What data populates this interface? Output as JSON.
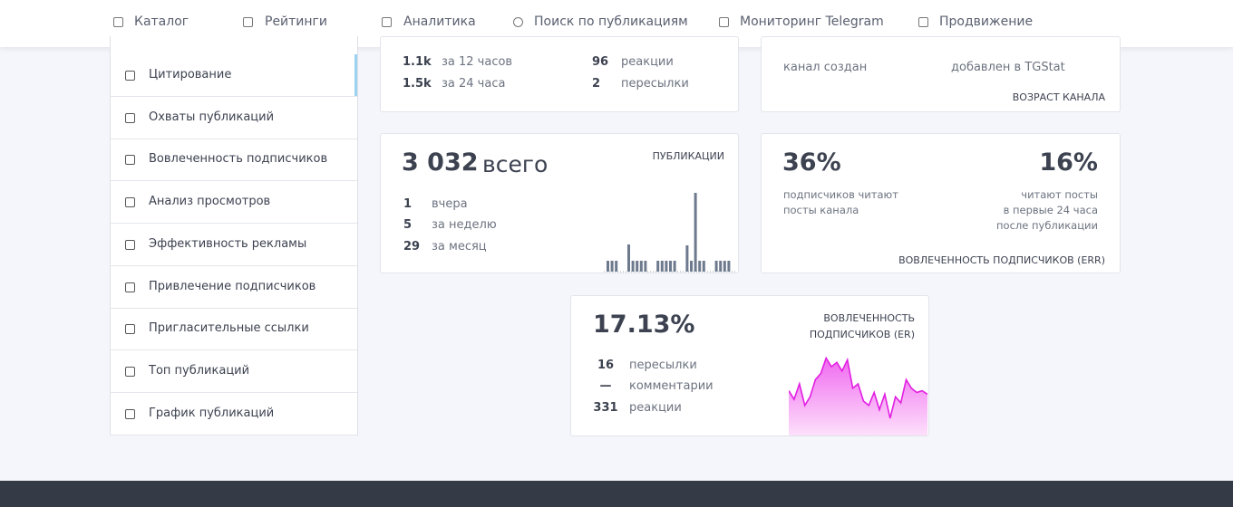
{
  "nav": [
    "Каталог",
    "Рейтинги",
    "Аналитика",
    "Поиск по публикациям",
    "Мониторинг Telegram",
    "Продвижение"
  ],
  "sidebar": [
    "Цитирование",
    "Охваты публикаций",
    "Вовлеченность подписчиков",
    "Анализ просмотров",
    "Эффективность рекламы",
    "Привлечение подписчиков",
    "Пригласительные ссылки",
    "Топ публикаций",
    "График публикаций"
  ],
  "views_card": {
    "rows": [
      {
        "value": "1.1k",
        "label": "за 12 часов"
      },
      {
        "value": "1.5k",
        "label": "за 24 часа"
      }
    ],
    "stats": [
      {
        "value": "96",
        "label": "реакции"
      },
      {
        "value": "2",
        "label": "пересылки"
      }
    ]
  },
  "age_card": {
    "created_label": "канал создан",
    "added_label": "добавлен в TGStat",
    "title": "ВОЗРАСТ КАНАЛА"
  },
  "posts_card": {
    "total": "3 032",
    "total_label": "всего",
    "title": "ПУБЛИКАЦИИ",
    "rows": [
      {
        "value": "1",
        "label": "вчера"
      },
      {
        "value": "5",
        "label": "за неделю"
      },
      {
        "value": "29",
        "label": "за месяц"
      }
    ],
    "bars": [
      12,
      12,
      12,
      0,
      0,
      30,
      12,
      12,
      12,
      12,
      0,
      0,
      12,
      12,
      12,
      12,
      12,
      0,
      0,
      29,
      12,
      87,
      12,
      12,
      0,
      0,
      12,
      12,
      12,
      12,
      0
    ]
  },
  "err_card": {
    "left_value": "36%",
    "left_lines": [
      "подписчиков читают",
      "посты канала"
    ],
    "right_value": "16%",
    "right_lines": [
      "читают посты",
      "в первые 24 часа",
      "после публикации"
    ],
    "title": "ВОВЛЕЧЕННОСТЬ ПОДПИСЧИКОВ (ERR)"
  },
  "er_card": {
    "value": "17.13%",
    "title_lines": [
      "ВОВЛЕЧЕННОСТЬ",
      "ПОДПИСЧИКОВ (ER)"
    ],
    "rows": [
      {
        "value": "16",
        "label": "пересылки"
      },
      {
        "value": "—",
        "label": "комментарии"
      },
      {
        "value": "331",
        "label": "реакции"
      }
    ],
    "sparkline": [
      52,
      42,
      60,
      35,
      45,
      65,
      72,
      90,
      80,
      85,
      75,
      88,
      55,
      60,
      40,
      35,
      50,
      30,
      48,
      20,
      45,
      38,
      65,
      55,
      50,
      52,
      48
    ]
  }
}
